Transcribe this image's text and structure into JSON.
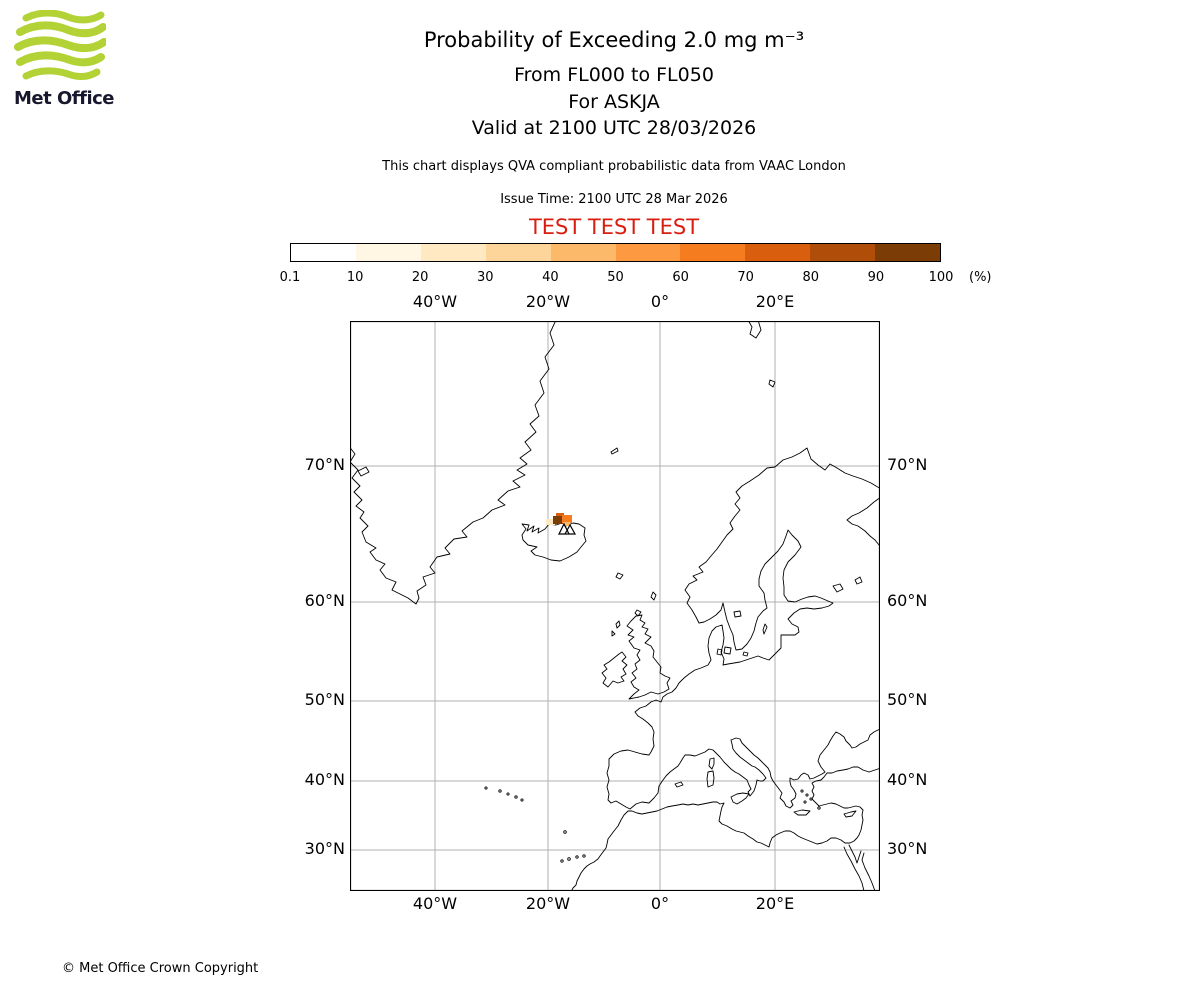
{
  "logo": {
    "text": "Met Office"
  },
  "header": {
    "title": "Probability of Exceeding 2.0 mg m⁻³",
    "subtitle_flight_levels": "From FL000 to FL050",
    "subtitle_volcano": "For ASKJA",
    "subtitle_valid": "Valid at 2100 UTC 28/03/2026",
    "disclaimer": "This chart displays QVA compliant probabilistic data from VAAC London",
    "issue_time": "Issue Time: 2100 UTC 28 Mar 2026",
    "test_text": "TEST TEST TEST"
  },
  "colorbar": {
    "ticks": [
      "0.1",
      "10",
      "20",
      "30",
      "40",
      "50",
      "60",
      "70",
      "80",
      "90",
      "100"
    ],
    "unit": "(%)",
    "colors": [
      "#ffffff",
      "#fff7e3",
      "#fee9c2",
      "#fdd49a",
      "#fdb96a",
      "#fd9a41",
      "#f57d20",
      "#d95f0e",
      "#b04d08",
      "#7c3c06"
    ]
  },
  "map": {
    "top_labels": [
      "40°W",
      "20°W",
      "0°",
      "20°E"
    ],
    "bottom_labels": [
      "40°W",
      "20°W",
      "0°",
      "20°E"
    ],
    "left_labels": [
      "70°N",
      "60°N",
      "50°N",
      "40°N",
      "30°N"
    ],
    "right_labels": [
      "70°N",
      "60°N",
      "50°N",
      "40°N",
      "30°N"
    ]
  },
  "footer": {
    "copyright": "© Met Office Crown Copyright"
  },
  "chart_data": {
    "type": "heatmap",
    "title": "Probability of Exceeding 2.0 mg m⁻³",
    "subtitle": "From FL000 to FL050, For ASKJA, Valid at 2100 UTC 28/03/2026",
    "units": "%",
    "levels_percent": [
      0.1,
      10,
      20,
      30,
      40,
      50,
      60,
      70,
      80,
      90,
      100
    ],
    "projection": "mercator",
    "extent": {
      "lon_min": -55,
      "lon_max": 39,
      "lat_min": 23.5,
      "lat_max": 77
    },
    "gridline_lons": [
      -40,
      -20,
      0,
      20
    ],
    "gridline_lats": [
      70,
      60,
      50,
      40,
      30
    ],
    "volcano": {
      "name": "ASKJA",
      "lat": 65.03,
      "lon": -16.75
    },
    "plume_cells": [
      {
        "lon": -19.8,
        "lat": 66.3,
        "band": "20-30"
      },
      {
        "lon": -18.6,
        "lat": 66.4,
        "band": "90-100"
      },
      {
        "lon": -18.2,
        "lat": 66.7,
        "band": "70-80"
      },
      {
        "lon": -17.0,
        "lat": 66.4,
        "band": "60-70"
      },
      {
        "lon": -16.6,
        "lat": 66.0,
        "band": "40-50"
      }
    ],
    "legend_position": "top",
    "grid": true
  }
}
